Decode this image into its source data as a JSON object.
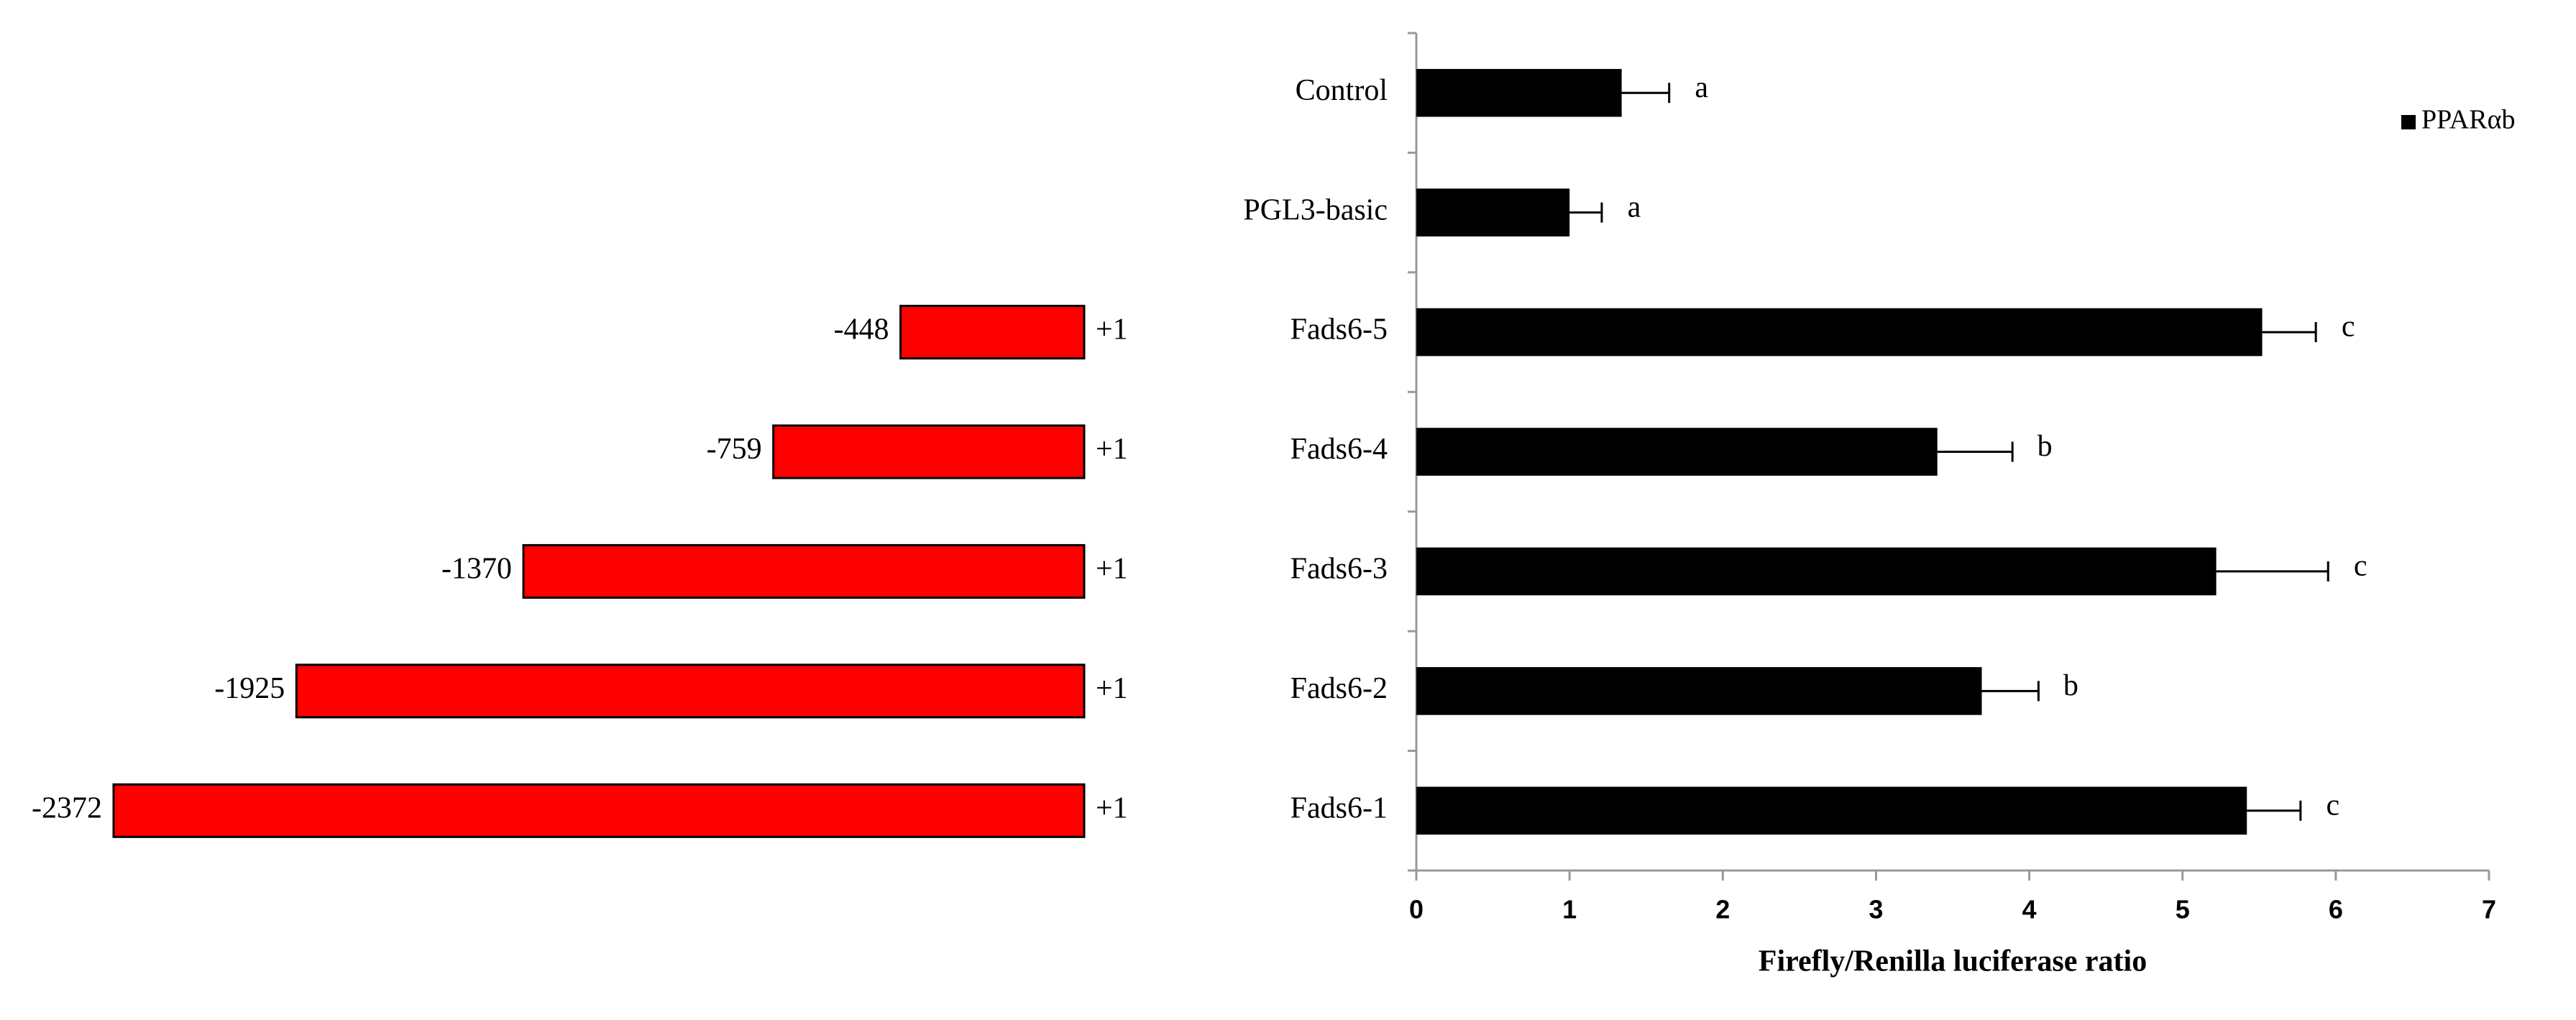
{
  "chart_data": [
    {
      "type": "construct",
      "values": [
        -448,
        -759,
        -1370,
        -1925,
        -2372
      ],
      "end": {
        "value": 1,
        "label": "+1"
      },
      "color": "#ff0000"
    },
    {
      "type": "hbar",
      "categories": [
        "Control",
        "PGL3-basic",
        "Fads6-5",
        "Fads6-4",
        "Fads6-3",
        "Fads6-2",
        "Fads6-1"
      ],
      "series": [
        {
          "name": "PPARαb",
          "color": "#000000",
          "values": [
            1.34,
            1.0,
            5.52,
            3.4,
            5.22,
            3.69,
            5.42
          ],
          "errors": [
            0.31,
            0.21,
            0.35,
            0.49,
            0.73,
            0.37,
            0.35
          ]
        }
      ],
      "annotations": [
        "a",
        "a",
        "c",
        "b",
        "c",
        "b",
        "c"
      ],
      "xlabel": "Firefly/Renilla luciferase ratio",
      "xlim": [
        0,
        7
      ],
      "xticks": [
        0,
        1,
        2,
        3,
        4,
        5,
        6,
        7
      ],
      "legend": "upper right"
    }
  ]
}
